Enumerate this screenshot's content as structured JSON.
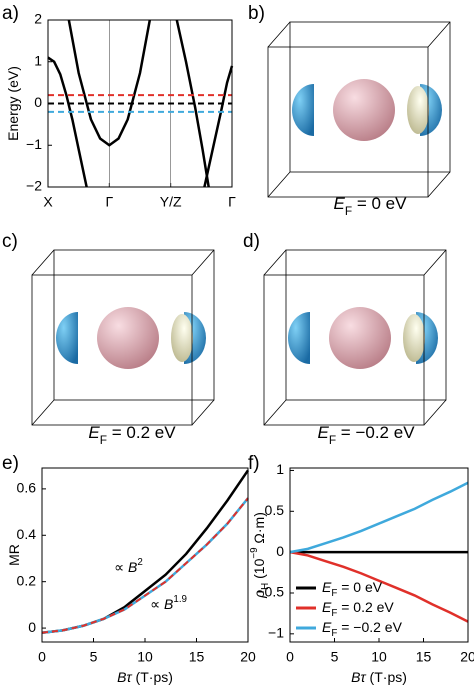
{
  "chart_data": [
    {
      "type": "line",
      "panel_label": "a)",
      "ylabel": "Energy (eV)",
      "xlim": [
        0,
        3
      ],
      "xticks": [
        {
          "value": 0,
          "label": "X"
        },
        {
          "value": 1,
          "label": "Γ"
        },
        {
          "value": 2,
          "label": "Y/Z"
        },
        {
          "value": 3,
          "label": "Γ"
        }
      ],
      "xgrid": true,
      "ylim": [
        -2,
        2
      ],
      "yticks": [
        {
          "value": -2,
          "label": "−2"
        },
        {
          "value": -1,
          "label": "−1"
        },
        0,
        1,
        2
      ],
      "series": [
        {
          "color": "#000000",
          "x": [
            0,
            0.1,
            0.2,
            0.3,
            0.4,
            0.5,
            0.63
          ],
          "values": [
            1.1,
            1.0,
            0.7,
            0.2,
            -0.4,
            -1.1,
            -2.0
          ]
        },
        {
          "color": "#000000",
          "x": [
            0.34,
            0.5,
            0.7,
            0.85,
            1,
            1.15,
            1.3,
            1.5,
            1.66
          ],
          "values": [
            2.0,
            0.73,
            -0.38,
            -0.84,
            -1.0,
            -0.84,
            -0.38,
            0.73,
            2.0
          ]
        },
        {
          "color": "#000000",
          "x": [
            2.1,
            2.25,
            2.4,
            2.52,
            2.62
          ],
          "values": [
            2.0,
            1.0,
            -0.1,
            -1.1,
            -2.0
          ]
        },
        {
          "color": "#000000",
          "x": [
            2.55,
            2.7,
            2.82,
            2.92,
            3.0
          ],
          "values": [
            -2.0,
            -1.0,
            -0.2,
            0.5,
            0.9
          ]
        },
        {
          "color": "#e0302a",
          "dashed": true,
          "x": [
            0,
            3
          ],
          "values": [
            0.2,
            0.2
          ]
        },
        {
          "color": "#000000",
          "dashed": true,
          "x": [
            0,
            3
          ],
          "values": [
            0,
            0
          ]
        },
        {
          "color": "#3fa9dc",
          "dashed": true,
          "x": [
            0,
            3
          ],
          "values": [
            -0.2,
            -0.2
          ]
        }
      ]
    },
    {
      "type": "line",
      "panel_label": "e)",
      "ylabel": "MR",
      "xlabel": "Bτ (T·ps)",
      "xlim": [
        0,
        20
      ],
      "xticks": [
        0,
        5,
        10,
        15,
        20
      ],
      "ylim": [
        -0.06,
        0.69
      ],
      "yticks": [
        0,
        0.2,
        0.4,
        0.6
      ],
      "x": [
        0,
        2,
        4,
        6,
        8,
        10,
        12,
        14,
        16,
        18,
        20
      ],
      "series": [
        {
          "color": "#000000",
          "values": [
            -0.02,
            -0.01,
            0.01,
            0.04,
            0.09,
            0.16,
            0.23,
            0.32,
            0.43,
            0.55,
            0.68
          ]
        },
        {
          "color": "#3fa9dc",
          "values": [
            -0.02,
            -0.01,
            0.01,
            0.04,
            0.08,
            0.14,
            0.2,
            0.28,
            0.36,
            0.45,
            0.56
          ]
        },
        {
          "color": "#e0302a",
          "dashed": true,
          "values": [
            -0.02,
            -0.01,
            0.01,
            0.04,
            0.08,
            0.14,
            0.2,
            0.28,
            0.36,
            0.45,
            0.56
          ]
        }
      ],
      "annotations": [
        {
          "text": "∝ B2",
          "color": "#000000"
        },
        {
          "text": "∝ B1.9",
          "color": "#3fa9dc"
        }
      ]
    },
    {
      "type": "line",
      "panel_label": "f)",
      "ylabel": "ρH (10−9 Ω·m)",
      "xlabel": "Bτ (T·ps)",
      "xlim": [
        0,
        20
      ],
      "xticks": [
        0,
        5,
        10,
        15,
        20
      ],
      "ylim": [
        -1.1,
        1.03
      ],
      "yticks": [
        {
          "value": -1,
          "label": "−1"
        },
        {
          "value": -0.5,
          "label": "−0.5"
        },
        0,
        0.5,
        1
      ],
      "legend": "lower left",
      "x": [
        0,
        2,
        4,
        6,
        8,
        10,
        12,
        14,
        16,
        18,
        20
      ],
      "series": [
        {
          "name": "EF = 0 eV",
          "color": "#000000",
          "values": [
            0,
            0,
            0,
            0,
            0,
            0,
            0,
            0,
            0,
            0,
            0
          ]
        },
        {
          "name": "EF = 0.2 eV",
          "color": "#e0302a",
          "values": [
            0,
            -0.04,
            -0.11,
            -0.18,
            -0.26,
            -0.35,
            -0.44,
            -0.53,
            -0.64,
            -0.74,
            -0.85
          ]
        },
        {
          "name": "EF = −0.2 eV",
          "color": "#3fa9dc",
          "values": [
            0,
            0.04,
            0.11,
            0.18,
            0.26,
            0.35,
            0.44,
            0.53,
            0.64,
            0.74,
            0.85
          ]
        }
      ]
    }
  ],
  "panels": [
    {
      "label": "b)",
      "caption": "EF = 0 eV"
    },
    {
      "label": "c)",
      "caption": "EF = 0.2 eV"
    },
    {
      "label": "d)",
      "caption": "EF = −0.2 eV"
    }
  ]
}
